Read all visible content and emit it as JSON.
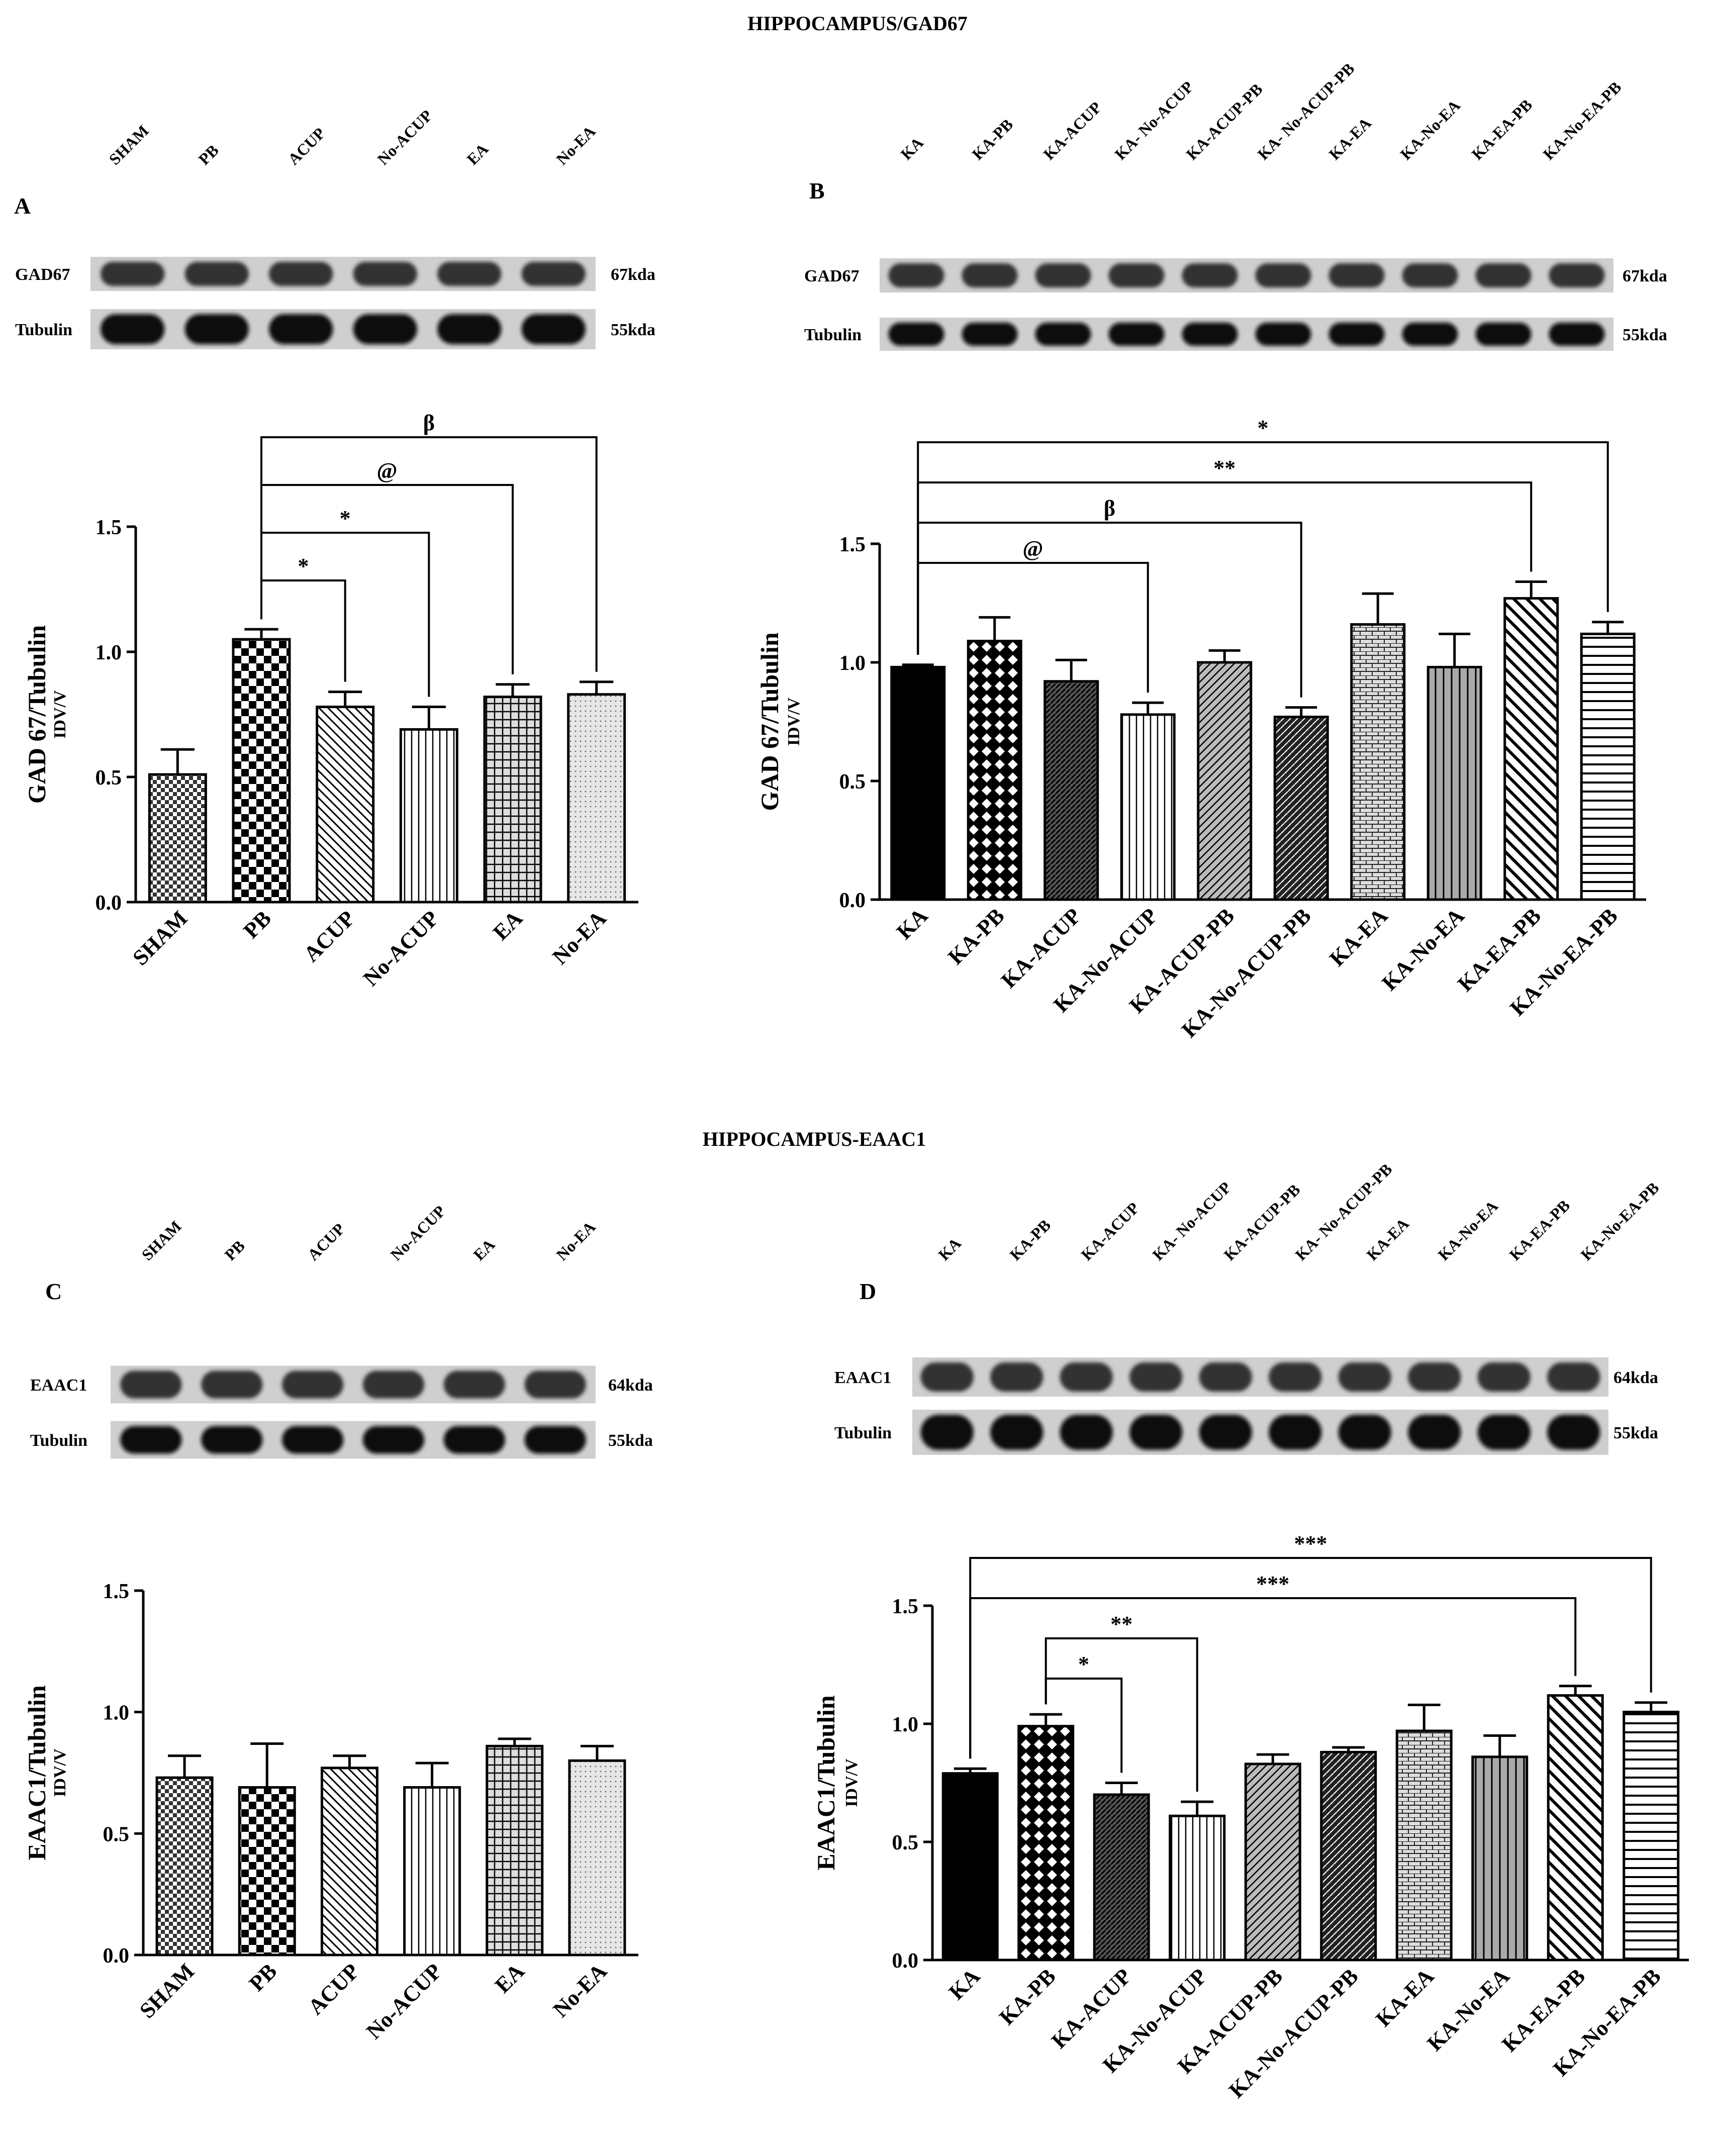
{
  "figure": {
    "title_top": "HIPPOCAMPUS/GAD67",
    "title_middle": "HIPPOCAMPUS-EAAC1"
  },
  "blots": [
    {
      "panel": "A",
      "lanes": [
        "SHAM",
        "PB",
        "ACUP",
        "No-ACUP",
        "EA",
        "No-EA"
      ],
      "rows": [
        {
          "label": "GAD67",
          "size": "67kda"
        },
        {
          "label": "Tubulin",
          "size": "55kda"
        }
      ]
    },
    {
      "panel": "B",
      "lanes": [
        "KA",
        "KA-PB",
        "KA-ACUP",
        "KA- No-ACUP",
        "KA-ACUP-PB",
        "KA- No-ACUP-PB",
        "KA-EA",
        "KA-No-EA",
        "KA-EA-PB",
        "KA-No-EA-PB"
      ],
      "rows": [
        {
          "label": "GAD67",
          "size": "67kda"
        },
        {
          "label": "Tubulin",
          "size": "55kda"
        }
      ]
    },
    {
      "panel": "C",
      "lanes": [
        "SHAM",
        "PB",
        "ACUP",
        "No-ACUP",
        "EA",
        "No-EA"
      ],
      "rows": [
        {
          "label": "EAAC1",
          "size": "64kda"
        },
        {
          "label": "Tubulin",
          "size": "55kda"
        }
      ]
    },
    {
      "panel": "D",
      "lanes": [
        "KA",
        "KA-PB",
        "KA-ACUP",
        "KA- No-ACUP",
        "KA-ACUP-PB",
        "KA- No-ACUP-PB",
        "KA-EA",
        "KA-No-EA",
        "KA-EA-PB",
        "KA-No-EA-PB"
      ],
      "rows": [
        {
          "label": "EAAC1",
          "size": "64kda"
        },
        {
          "label": "Tubulin",
          "size": "55kda"
        }
      ]
    }
  ],
  "chart_data": [
    {
      "type": "bar",
      "panel": "A",
      "ylabel": "GAD 67/Tubulin",
      "ylabel_sub": "IDV/V",
      "ylim": [
        0,
        1.5
      ],
      "yticks": [
        "0.0",
        "0.5",
        "1.0",
        "1.5"
      ],
      "categories": [
        "SHAM",
        "PB",
        "ACUP",
        "No-ACUP",
        "EA",
        "No-EA"
      ],
      "values": [
        0.51,
        1.05,
        0.78,
        0.69,
        0.82,
        0.83
      ],
      "errors": [
        0.1,
        0.04,
        0.06,
        0.09,
        0.05,
        0.05
      ],
      "patterns": [
        "checker-small",
        "checker-big",
        "diag-down",
        "vertical",
        "grid",
        "dots"
      ],
      "significance": [
        {
          "from": 1,
          "to": 2,
          "label": "*"
        },
        {
          "from": 1,
          "to": 3,
          "label": "*"
        },
        {
          "from": 1,
          "to": 4,
          "label": "@"
        },
        {
          "from": 1,
          "to": 5,
          "label": "β"
        }
      ]
    },
    {
      "type": "bar",
      "panel": "B",
      "ylabel": "GAD 67/Tubulin",
      "ylabel_sub": "IDV/V",
      "ylim": [
        0,
        1.5
      ],
      "yticks": [
        "0.0",
        "0.5",
        "1.0",
        "1.5"
      ],
      "categories": [
        "KA",
        "KA-PB",
        "KA-ACUP",
        "KA-No-ACUP",
        "KA-ACUP-PB",
        "KA-No-ACUP-PB",
        "KA-EA",
        "KA-No-EA",
        "KA-EA-PB",
        "KA-No-EA-PB"
      ],
      "values": [
        0.98,
        1.09,
        0.92,
        0.78,
        1.0,
        0.77,
        1.16,
        0.98,
        1.27,
        1.12
      ],
      "errors": [
        0.01,
        0.1,
        0.09,
        0.05,
        0.05,
        0.04,
        0.13,
        0.14,
        0.07,
        0.05
      ],
      "patterns": [
        "solid",
        "crosshatch",
        "dense-diag",
        "vertical",
        "diag-up",
        "dense-check",
        "brick",
        "vertical-grey",
        "diag-down-thick",
        "horizontal"
      ],
      "significance": [
        {
          "from": 0,
          "to": 3,
          "label": "@"
        },
        {
          "from": 0,
          "to": 5,
          "label": "β"
        },
        {
          "from": 0,
          "to": 8,
          "label": "**"
        },
        {
          "from": 0,
          "to": 9,
          "label": "*"
        }
      ]
    },
    {
      "type": "bar",
      "panel": "C",
      "ylabel": "EAAC1/Tubulin",
      "ylabel_sub": "IDV/V",
      "ylim": [
        0,
        1.5
      ],
      "yticks": [
        "0.0",
        "0.5",
        "1.0",
        "1.5"
      ],
      "categories": [
        "SHAM",
        "PB",
        "ACUP",
        "No-ACUP",
        "EA",
        "No-EA"
      ],
      "values": [
        0.73,
        0.69,
        0.77,
        0.69,
        0.86,
        0.8
      ],
      "errors": [
        0.09,
        0.18,
        0.05,
        0.1,
        0.03,
        0.06
      ],
      "patterns": [
        "checker-small",
        "checker-big",
        "diag-down",
        "vertical",
        "grid",
        "dots"
      ],
      "significance": []
    },
    {
      "type": "bar",
      "panel": "D",
      "ylabel": "EAAC1/Tubulin",
      "ylabel_sub": "IDV/V",
      "ylim": [
        0,
        1.5
      ],
      "yticks": [
        "0.0",
        "0.5",
        "1.0",
        "1.5"
      ],
      "categories": [
        "KA",
        "KA-PB",
        "KA-ACUP",
        "KA-No-ACUP",
        "KA-ACUP-PB",
        "KA-No-ACUP-PB",
        "KA-EA",
        "KA-No-EA",
        "KA-EA-PB",
        "KA-No-EA-PB"
      ],
      "values": [
        0.79,
        0.99,
        0.7,
        0.61,
        0.83,
        0.88,
        0.97,
        0.86,
        1.12,
        1.05
      ],
      "errors": [
        0.02,
        0.05,
        0.05,
        0.06,
        0.04,
        0.02,
        0.11,
        0.09,
        0.04,
        0.04
      ],
      "patterns": [
        "solid",
        "crosshatch",
        "dense-diag",
        "vertical",
        "diag-up",
        "dense-check",
        "brick",
        "vertical-grey",
        "diag-down-thick",
        "horizontal"
      ],
      "significance": [
        {
          "from": 1,
          "to": 2,
          "label": "*"
        },
        {
          "from": 1,
          "to": 3,
          "label": "**"
        },
        {
          "from": 0,
          "to": 8,
          "label": "***"
        },
        {
          "from": 0,
          "to": 9,
          "label": "***"
        }
      ]
    }
  ]
}
